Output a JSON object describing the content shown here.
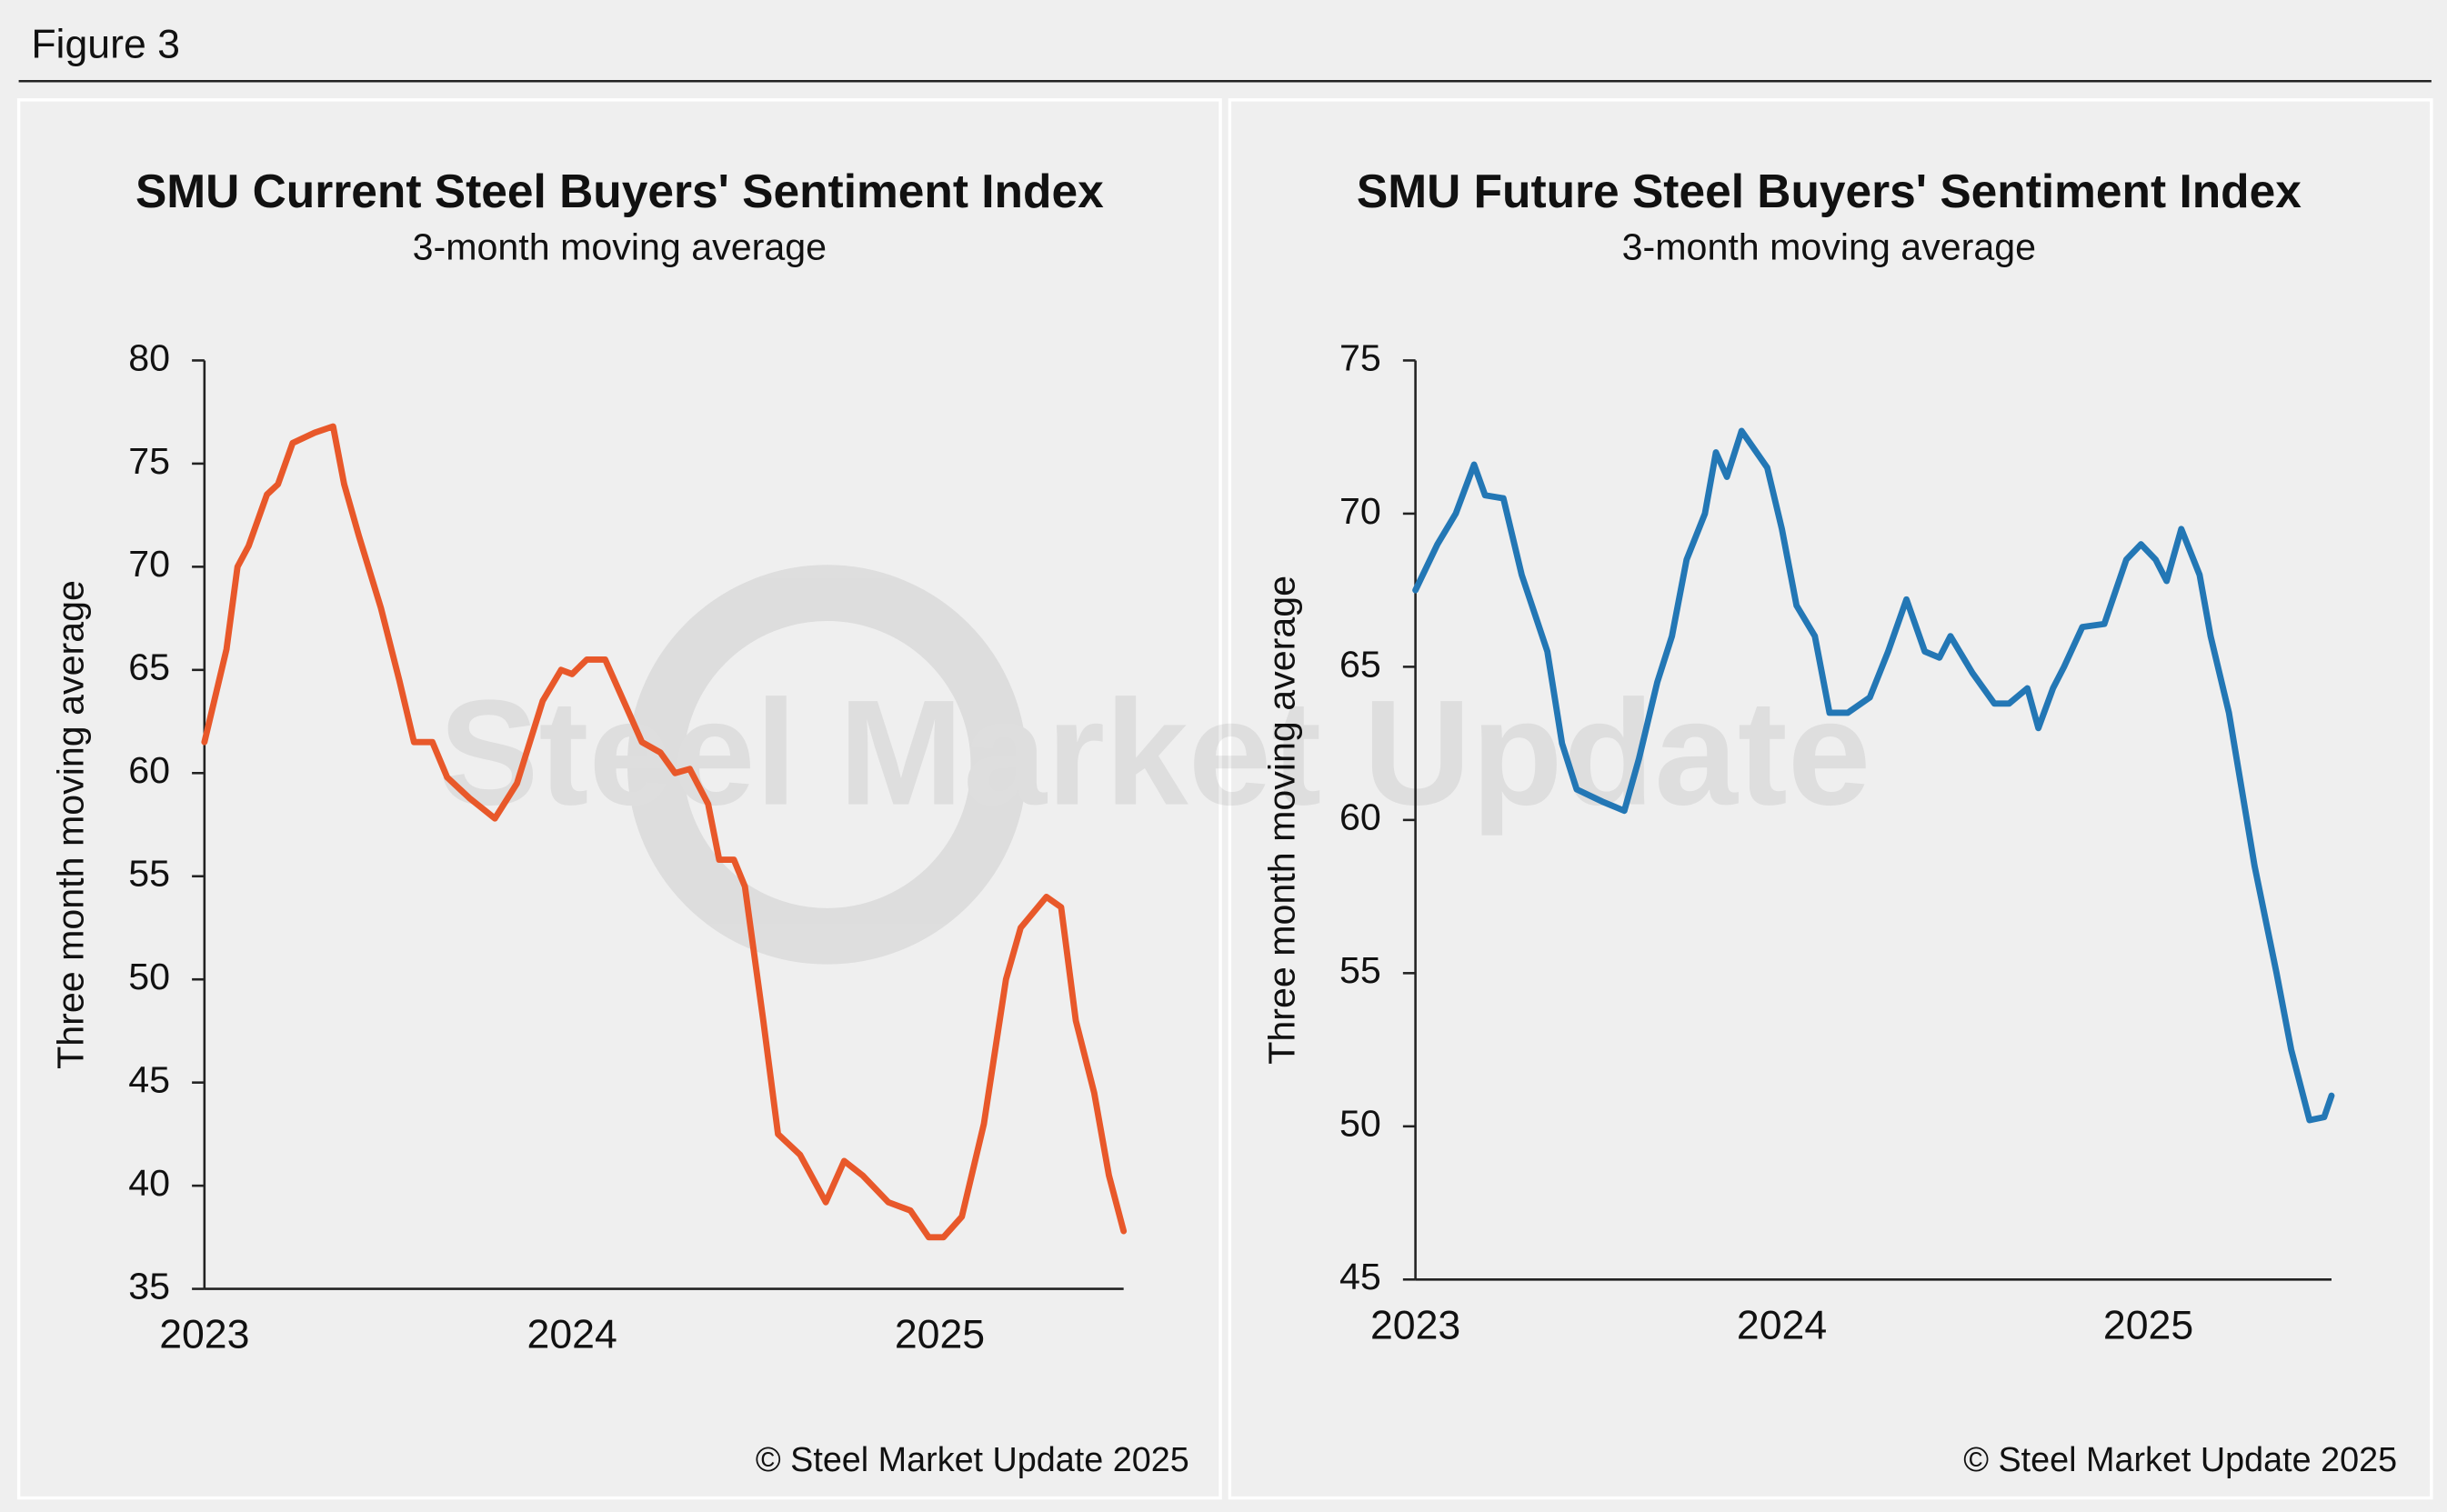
{
  "figure_label": "Figure 3",
  "watermark": "Steel Market Update",
  "chart_data": [
    {
      "type": "line",
      "title": "SMU Current Steel Buyers' Sentiment Index",
      "subtitle": "3-month moving average",
      "y_label": "Three month moving average",
      "source": "© Steel Market Update 2025",
      "color": "#e8582a",
      "xlim": [
        2023,
        2025.5
      ],
      "xticks": [
        2023,
        2024,
        2025
      ],
      "ylim": [
        35,
        80
      ],
      "yticks": [
        35,
        40,
        45,
        50,
        55,
        60,
        65,
        70,
        75,
        80
      ],
      "x": [
        2023.0,
        2023.06,
        2023.09,
        2023.12,
        2023.17,
        2023.2,
        2023.24,
        2023.3,
        2023.35,
        2023.38,
        2023.42,
        2023.48,
        2023.53,
        2023.57,
        2023.62,
        2023.66,
        2023.72,
        2023.79,
        2023.85,
        2023.92,
        2023.97,
        2024.0,
        2024.04,
        2024.09,
        2024.14,
        2024.19,
        2024.24,
        2024.28,
        2024.32,
        2024.37,
        2024.4,
        2024.44,
        2024.47,
        2024.52,
        2024.56,
        2024.62,
        2024.69,
        2024.74,
        2024.79,
        2024.86,
        2024.92,
        2024.97,
        2025.01,
        2025.06,
        2025.12,
        2025.18,
        2025.22,
        2025.29,
        2025.33,
        2025.37,
        2025.42,
        2025.46,
        2025.5
      ],
      "values": [
        61.5,
        66,
        70,
        71,
        73.5,
        74,
        76,
        76.5,
        76.8,
        74,
        71.5,
        68,
        64.5,
        61.5,
        61.5,
        59.8,
        58.8,
        57.8,
        59.5,
        63.5,
        65,
        64.8,
        65.5,
        65.5,
        63.5,
        61.5,
        61,
        60,
        60.2,
        58.5,
        55.8,
        55.8,
        54.5,
        48,
        42.5,
        41.5,
        39.2,
        41.2,
        40.5,
        39.2,
        38.8,
        37.5,
        37.5,
        38.5,
        43,
        50,
        52.5,
        54,
        53.5,
        48,
        44.5,
        40.5,
        37.8
      ]
    },
    {
      "type": "line",
      "title": "SMU Future Steel Buyers' Sentiment Index",
      "subtitle": "3-month moving average",
      "y_label": "Three month moving average",
      "source": "© Steel Market Update 2025",
      "color": "#2377b5",
      "xlim": [
        2023,
        2025.5
      ],
      "xticks": [
        2023,
        2024,
        2025
      ],
      "ylim": [
        45,
        75
      ],
      "yticks": [
        45,
        50,
        55,
        60,
        65,
        70,
        75
      ],
      "x": [
        2023.0,
        2023.06,
        2023.11,
        2023.16,
        2023.19,
        2023.24,
        2023.29,
        2023.36,
        2023.4,
        2023.44,
        2023.51,
        2023.57,
        2023.61,
        2023.66,
        2023.7,
        2023.74,
        2023.79,
        2023.82,
        2023.85,
        2023.89,
        2023.96,
        2024.0,
        2024.04,
        2024.09,
        2024.13,
        2024.18,
        2024.24,
        2024.29,
        2024.34,
        2024.39,
        2024.43,
        2024.46,
        2024.52,
        2024.58,
        2024.62,
        2024.67,
        2024.7,
        2024.74,
        2024.77,
        2024.82,
        2024.88,
        2024.94,
        2024.98,
        2025.02,
        2025.05,
        2025.09,
        2025.14,
        2025.17,
        2025.22,
        2025.29,
        2025.35,
        2025.39,
        2025.44,
        2025.48,
        2025.5
      ],
      "values": [
        67.5,
        69,
        70,
        71.6,
        70.6,
        70.5,
        68,
        65.5,
        62.5,
        61,
        60.6,
        60.3,
        62,
        64.5,
        66,
        68.5,
        70,
        72,
        71.2,
        72.7,
        71.5,
        69.5,
        67,
        66,
        63.5,
        63.5,
        64,
        65.5,
        67.2,
        65.5,
        65.3,
        66,
        64.8,
        63.8,
        63.8,
        64.3,
        63,
        64.3,
        65,
        66.3,
        66.4,
        68.5,
        69,
        68.5,
        67.8,
        69.5,
        68,
        66,
        63.5,
        58.5,
        55,
        52.5,
        50.2,
        50.3,
        51
      ]
    }
  ]
}
